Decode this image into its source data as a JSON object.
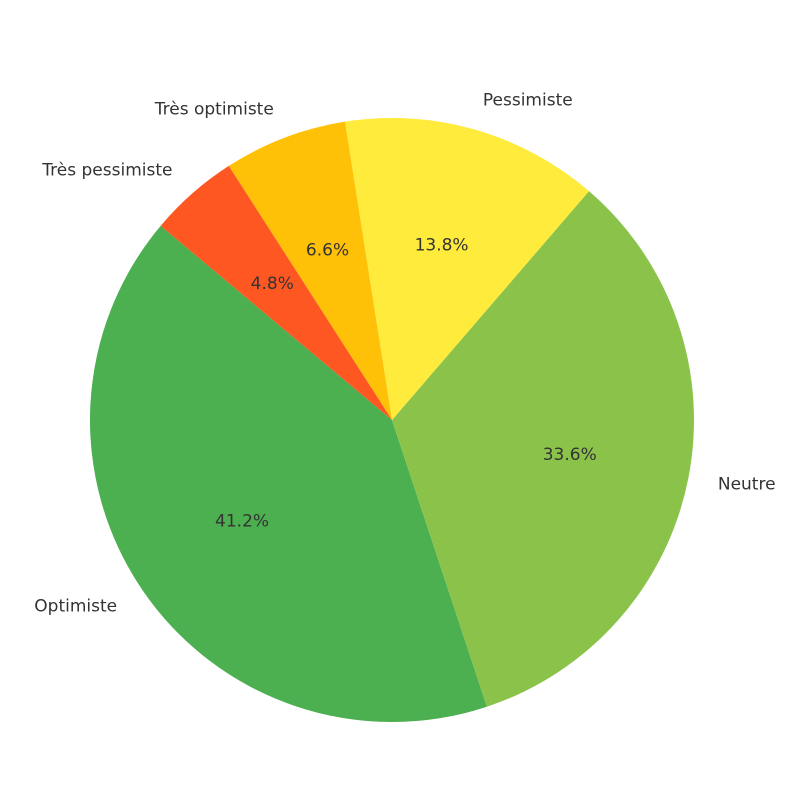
{
  "chart_data": {
    "type": "pie",
    "categories": [
      "Optimiste",
      "Neutre",
      "Pessimiste",
      "Très optimiste",
      "Très pessimiste"
    ],
    "values": [
      41.2,
      33.6,
      13.8,
      6.6,
      4.8
    ],
    "value_labels": [
      "41.2%",
      "33.6%",
      "13.8%",
      "6.6%",
      "4.8%"
    ],
    "colors": [
      "#4caf50",
      "#8bc34a",
      "#ffeb3b",
      "#ffc107",
      "#ff5722"
    ],
    "start_angle": 140,
    "direction": "counterclockwise"
  }
}
